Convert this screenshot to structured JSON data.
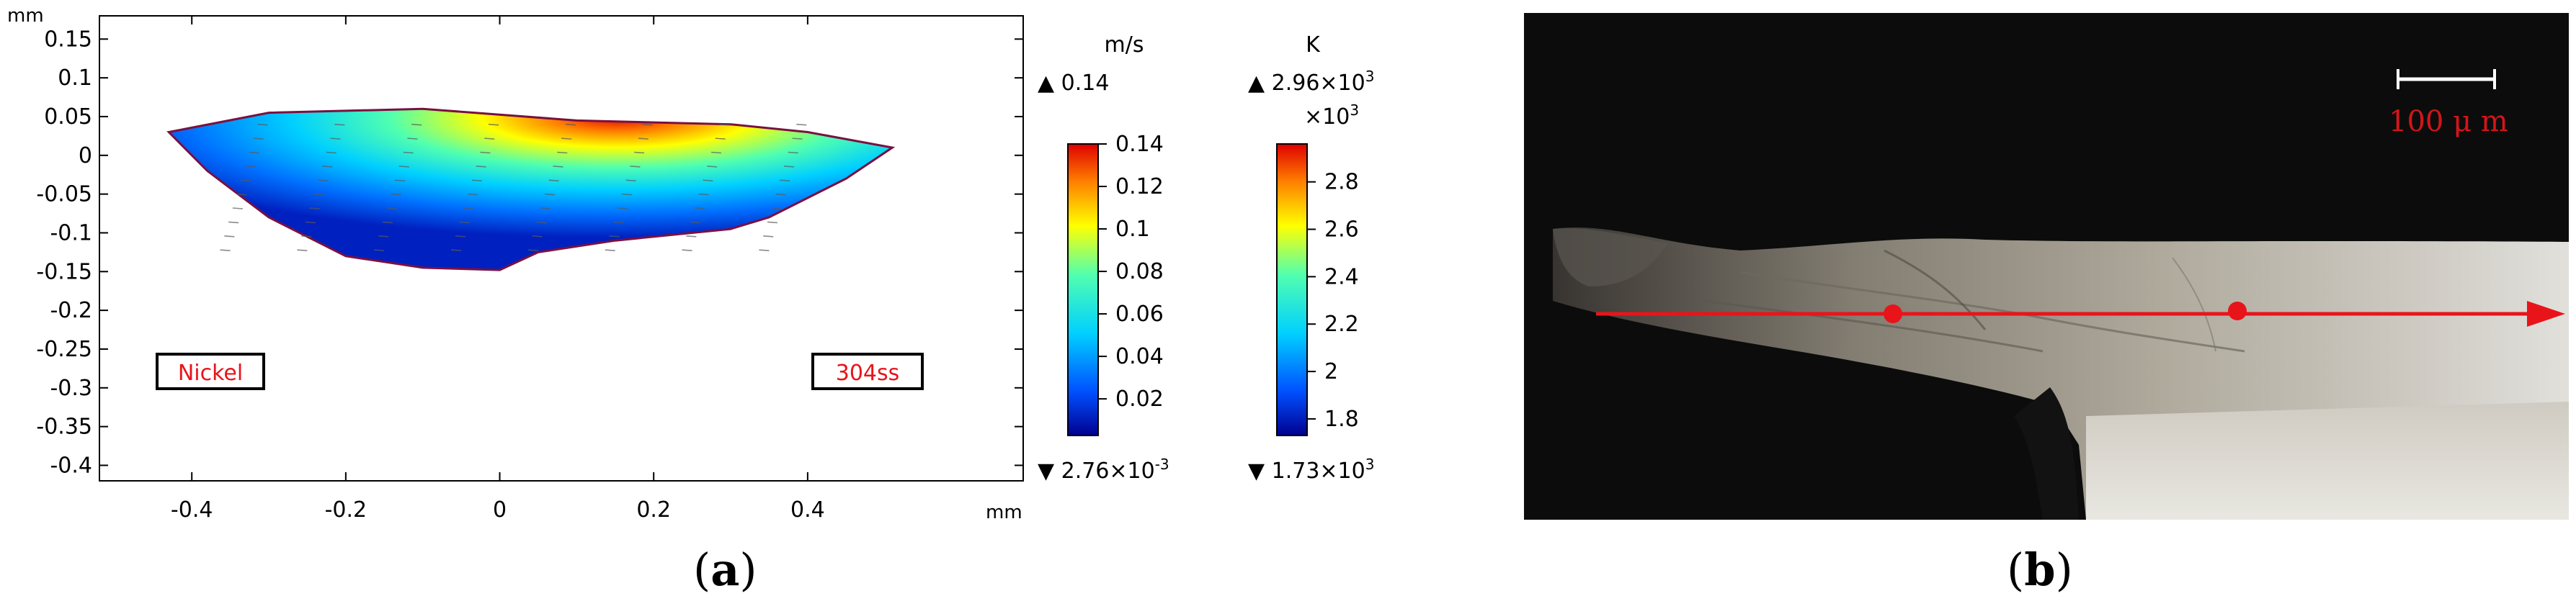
{
  "panels": {
    "a": {
      "label": "a"
    },
    "b": {
      "label": "b"
    }
  },
  "chart_data": {
    "type": "heatmap",
    "xlabel_unit": "mm",
    "ylabel_unit": "mm",
    "xlim": [
      -0.52,
      0.68
    ],
    "ylim": [
      -0.42,
      0.18
    ],
    "x_ticks": [
      -0.4,
      -0.2,
      0,
      0.2,
      0.4
    ],
    "x_tick_labels": [
      "-0.4",
      "-0.2",
      "0",
      "0.2",
      "0.4"
    ],
    "y_ticks": [
      0.15,
      0.1,
      0.05,
      0,
      -0.05,
      -0.1,
      -0.15,
      -0.2,
      -0.25,
      -0.3,
      -0.35,
      -0.4
    ],
    "y_tick_labels": [
      "0.15",
      "0.1",
      "0.05",
      "0",
      "-0.05",
      "-0.1",
      "-0.15",
      "-0.2",
      "-0.25",
      "-0.3",
      "-0.35",
      "-0.4"
    ],
    "pool_boundary": [
      [
        -0.43,
        0.03
      ],
      [
        -0.3,
        0.055
      ],
      [
        -0.1,
        0.06
      ],
      [
        0.1,
        0.045
      ],
      [
        0.3,
        0.04
      ],
      [
        0.4,
        0.03
      ],
      [
        0.51,
        0.01
      ],
      [
        0.45,
        -0.03
      ],
      [
        0.35,
        -0.08
      ],
      [
        0.3,
        -0.095
      ],
      [
        0.15,
        -0.11
      ],
      [
        0.05,
        -0.125
      ],
      [
        0.0,
        -0.148
      ],
      [
        -0.1,
        -0.145
      ],
      [
        -0.2,
        -0.13
      ],
      [
        -0.3,
        -0.08
      ],
      [
        -0.38,
        -0.02
      ]
    ],
    "hotspot": {
      "x": 0.15,
      "y": 0.04
    },
    "labels": {
      "left_material": "Nickel",
      "right_material": "304ss"
    },
    "velocity_legend": {
      "unit": "m/s",
      "max_label": "0.14",
      "min_label": "2.76×10",
      "min_exp": "-3",
      "ticks": [
        "0.14",
        "0.12",
        "0.1",
        "0.08",
        "0.06",
        "0.04",
        "0.02"
      ],
      "range": [
        0.00276,
        0.14
      ],
      "tick_values": [
        0.14,
        0.12,
        0.1,
        0.08,
        0.06,
        0.04,
        0.02
      ]
    },
    "temperature_legend": {
      "unit": "K",
      "max_label": "2.96×10",
      "max_exp": "3",
      "scale_label": "×10",
      "scale_exp": "3",
      "min_label": "1.73×10",
      "min_exp": "3",
      "ticks": [
        "2.8",
        "2.6",
        "2.4",
        "2.2",
        "2",
        "1.8"
      ],
      "range": [
        1.73,
        2.96
      ],
      "tick_values": [
        2.8,
        2.6,
        2.4,
        2.2,
        2.0,
        1.8
      ]
    },
    "colormap": [
      "#00008f",
      "#0050ff",
      "#00d0ff",
      "#50ffb0",
      "#ffff00",
      "#ff8000",
      "#e00000"
    ]
  },
  "micrograph": {
    "scale_bar_text": "100 μ m",
    "colors": {
      "arrow": "#e8141a",
      "scale": "#d4151a"
    }
  }
}
